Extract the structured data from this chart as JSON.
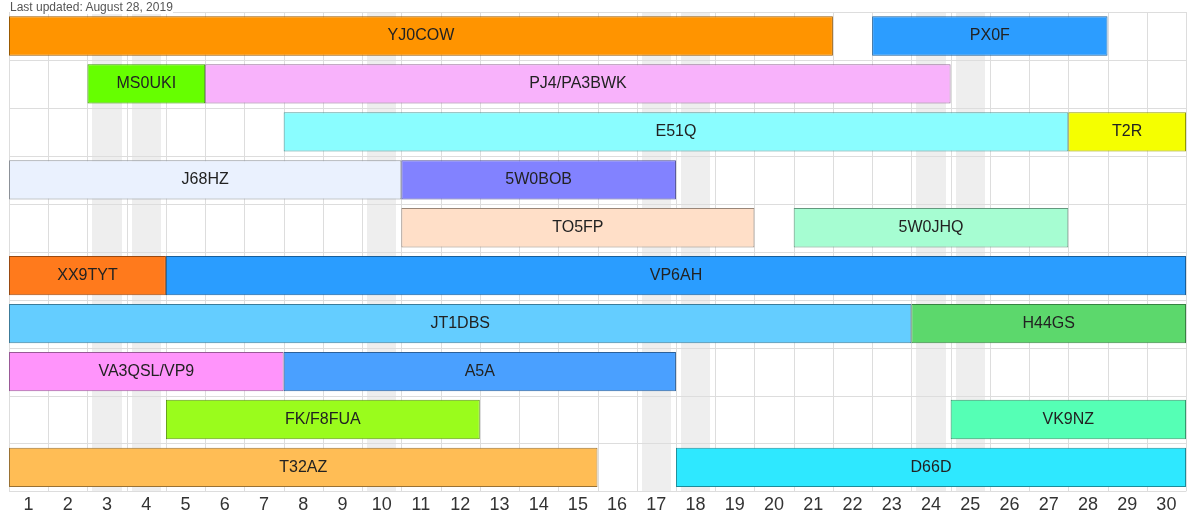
{
  "chart_data": {
    "type": "bar",
    "orientation": "horizontal",
    "subtitle": "Last updated: August 28, 2019",
    "categories": [
      null,
      null,
      null,
      null,
      null,
      null,
      null,
      null,
      null,
      null
    ],
    "series": [
      {
        "name": "YJ0COW",
        "color": "#ff9400",
        "values": [
          21,
          null,
          null,
          null,
          null,
          null,
          null,
          null,
          null,
          null
        ],
        "base": [
          0.5,
          null,
          null,
          null,
          null,
          null,
          null,
          null,
          null,
          null
        ]
      },
      {
        "name": "PX0F",
        "color": "#2c9dff",
        "values": [
          6,
          null,
          null,
          null,
          null,
          null,
          null,
          null,
          null,
          null
        ],
        "base": [
          22.5,
          null,
          null,
          null,
          null,
          null,
          null,
          null,
          null,
          null
        ]
      },
      {
        "name": "MS0UKI",
        "color": "#66ff00",
        "values": [
          null,
          3,
          null,
          null,
          null,
          null,
          null,
          null,
          null,
          null
        ],
        "base": [
          null,
          2.5,
          null,
          null,
          null,
          null,
          null,
          null,
          null,
          null
        ]
      },
      {
        "name": "PJ4/PA3BWK",
        "color": "#f8b2fb",
        "values": [
          null,
          19,
          null,
          null,
          null,
          null,
          null,
          null,
          null,
          null
        ],
        "base": [
          null,
          5.5,
          null,
          null,
          null,
          null,
          null,
          null,
          null,
          null
        ]
      },
      {
        "name": "E51Q",
        "color": "#8afdff",
        "values": [
          null,
          null,
          20,
          null,
          null,
          null,
          null,
          null,
          null,
          null
        ],
        "base": [
          null,
          null,
          7.5,
          null,
          null,
          null,
          null,
          null,
          null,
          null
        ]
      },
      {
        "name": "T2R",
        "color": "#f5ff00",
        "values": [
          null,
          null,
          3,
          null,
          null,
          null,
          null,
          null,
          null,
          null
        ],
        "base": [
          null,
          null,
          27.5,
          null,
          null,
          null,
          null,
          null,
          null,
          null
        ]
      },
      {
        "name": "J68HZ",
        "color": "#eaf1fe",
        "values": [
          null,
          null,
          null,
          10,
          null,
          null,
          null,
          null,
          null,
          null
        ],
        "base": [
          null,
          null,
          null,
          0.5,
          null,
          null,
          null,
          null,
          null,
          null
        ]
      },
      {
        "name": "5W0BOB",
        "color": "#8282ff",
        "values": [
          null,
          null,
          null,
          7,
          null,
          null,
          null,
          null,
          null,
          null
        ],
        "base": [
          null,
          null,
          null,
          10.5,
          null,
          null,
          null,
          null,
          null,
          null
        ]
      },
      {
        "name": "TO5FP",
        "color": "#ffdfc8",
        "values": [
          null,
          null,
          null,
          null,
          9,
          null,
          null,
          null,
          null,
          null
        ],
        "base": [
          null,
          null,
          null,
          null,
          10.5,
          null,
          null,
          null,
          null,
          null
        ]
      },
      {
        "name": "5W0JHQ",
        "color": "#a6fdd2",
        "values": [
          null,
          null,
          null,
          null,
          7,
          null,
          null,
          null,
          null,
          null
        ],
        "base": [
          null,
          null,
          null,
          null,
          20.5,
          null,
          null,
          null,
          null,
          null
        ]
      },
      {
        "name": "XX9TYT",
        "color": "#ff7a1c",
        "values": [
          null,
          null,
          null,
          null,
          null,
          4,
          null,
          null,
          null,
          null
        ],
        "base": [
          null,
          null,
          null,
          null,
          null,
          0.5,
          null,
          null,
          null,
          null
        ]
      },
      {
        "name": "VP6AH",
        "color": "#2a9dff",
        "values": [
          null,
          null,
          null,
          null,
          null,
          26,
          null,
          null,
          null,
          null
        ],
        "base": [
          null,
          null,
          null,
          null,
          null,
          4.5,
          null,
          null,
          null,
          null
        ]
      },
      {
        "name": "JT1DBS",
        "color": "#64cdff",
        "values": [
          null,
          null,
          null,
          null,
          null,
          null,
          23,
          null,
          null,
          null
        ],
        "base": [
          null,
          null,
          null,
          null,
          null,
          null,
          0.5,
          null,
          null,
          null
        ]
      },
      {
        "name": "H44GS",
        "color": "#5cd86c",
        "values": [
          null,
          null,
          null,
          null,
          null,
          null,
          7,
          null,
          null,
          null
        ],
        "base": [
          null,
          null,
          null,
          null,
          null,
          null,
          23.5,
          null,
          null,
          null
        ]
      },
      {
        "name": "VA3QSL/VP9",
        "color": "#ff94fb",
        "values": [
          null,
          null,
          null,
          null,
          null,
          null,
          null,
          7,
          null,
          null
        ],
        "base": [
          null,
          null,
          null,
          null,
          null,
          null,
          null,
          0.5,
          null,
          null
        ]
      },
      {
        "name": "A5A",
        "color": "#4aa0ff",
        "values": [
          null,
          null,
          null,
          null,
          null,
          null,
          null,
          10,
          null,
          null
        ],
        "base": [
          null,
          null,
          null,
          null,
          null,
          null,
          null,
          7.5,
          null,
          null
        ]
      },
      {
        "name": "FK/F8FUA",
        "color": "#9afc1c",
        "values": [
          null,
          null,
          null,
          null,
          null,
          null,
          null,
          null,
          8,
          null
        ],
        "base": [
          null,
          null,
          null,
          null,
          null,
          null,
          null,
          null,
          4.5,
          null
        ]
      },
      {
        "name": "VK9NZ",
        "color": "#55ffb5",
        "values": [
          null,
          null,
          null,
          null,
          null,
          null,
          null,
          null,
          6,
          null
        ],
        "base": [
          null,
          null,
          null,
          null,
          null,
          null,
          null,
          null,
          24.5,
          null
        ]
      },
      {
        "name": "T32AZ",
        "color": "#ffbd55",
        "values": [
          null,
          null,
          null,
          null,
          null,
          null,
          null,
          null,
          null,
          15
        ],
        "base": [
          null,
          null,
          null,
          null,
          null,
          null,
          null,
          null,
          null,
          0.5
        ]
      },
      {
        "name": "D66D",
        "color": "#2ee8ff",
        "values": [
          null,
          null,
          null,
          null,
          null,
          null,
          null,
          null,
          null,
          13
        ],
        "base": [
          null,
          null,
          null,
          null,
          null,
          null,
          null,
          null,
          null,
          17.5
        ]
      }
    ],
    "xlim": [
      0.5,
      30.5
    ],
    "xticks": [
      1,
      2,
      3,
      4,
      5,
      6,
      7,
      8,
      9,
      10,
      11,
      12,
      13,
      14,
      15,
      16,
      17,
      18,
      19,
      20,
      21,
      22,
      23,
      24,
      25,
      26,
      27,
      28,
      29,
      30
    ],
    "grid": true,
    "legend": false,
    "tick_labels": "x"
  }
}
